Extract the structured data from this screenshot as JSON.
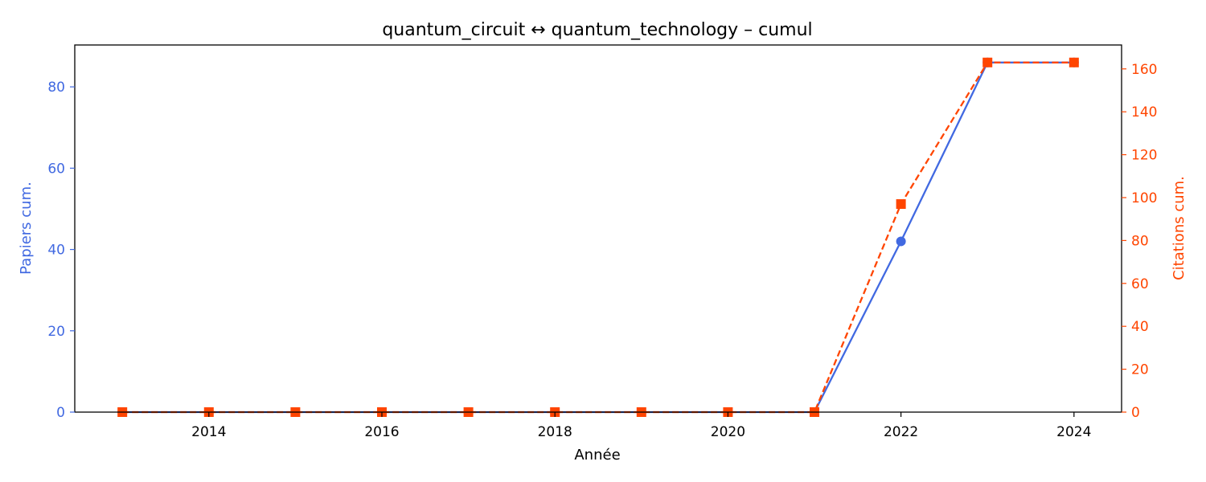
{
  "chart_data": {
    "type": "line",
    "title": "quantum_circuit  ↔  quantum_technology  –  cumul",
    "xlabel": "Année",
    "ylabel_left": "Papiers cum.",
    "ylabel_right": "Citations cum.",
    "x": [
      2013,
      2014,
      2015,
      2016,
      2017,
      2018,
      2019,
      2020,
      2021,
      2022,
      2023,
      2024
    ],
    "xlim": [
      2012.45,
      2024.55
    ],
    "xticks": [
      "2014",
      "2016",
      "2018",
      "2020",
      "2022",
      "2024"
    ],
    "ylim_left": [
      0,
      90.3
    ],
    "yticks_left": [
      "0",
      "20",
      "40",
      "60",
      "80"
    ],
    "ylim_right": [
      0,
      171.15
    ],
    "yticks_right": [
      "0",
      "20",
      "40",
      "60",
      "80",
      "100",
      "120",
      "140",
      "160"
    ],
    "grid": false,
    "series": [
      {
        "name": "",
        "axis": "left",
        "color": "#4169e1",
        "style": "solid",
        "marker": "circle",
        "values": [
          0,
          0,
          0,
          0,
          0,
          0,
          0,
          0,
          0,
          42,
          86,
          86
        ]
      },
      {
        "name": "",
        "axis": "right",
        "color": "#ff4500",
        "style": "dashed",
        "marker": "square",
        "values": [
          0,
          0,
          0,
          0,
          0,
          0,
          0,
          0,
          0,
          97,
          163,
          163
        ]
      }
    ]
  }
}
